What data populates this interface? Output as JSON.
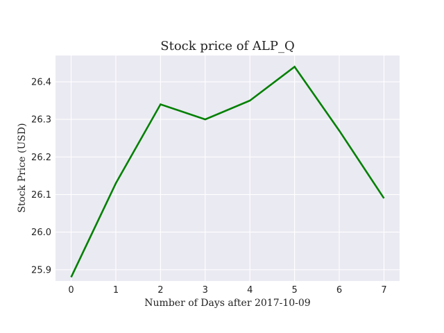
{
  "chart_data": {
    "type": "line",
    "title": "Stock price of ALP_Q",
    "xlabel": "Number of Days after 2017-10-09",
    "ylabel": "Stock Price (USD)",
    "x": [
      0,
      1,
      2,
      3,
      4,
      5,
      6,
      7
    ],
    "series": [
      {
        "values": [
          25.88,
          26.13,
          26.34,
          26.3,
          26.35,
          26.44,
          26.27,
          26.09
        ],
        "color": "#008000"
      }
    ],
    "xticks": [
      "0",
      "1",
      "2",
      "3",
      "4",
      "5",
      "6",
      "7"
    ],
    "yticks": [
      "25.9",
      "26.0",
      "26.1",
      "26.2",
      "26.3",
      "26.4"
    ],
    "xlim": [
      -0.35,
      7.35
    ],
    "ylim": [
      25.87,
      26.47
    ],
    "grid": true,
    "legend": false
  }
}
